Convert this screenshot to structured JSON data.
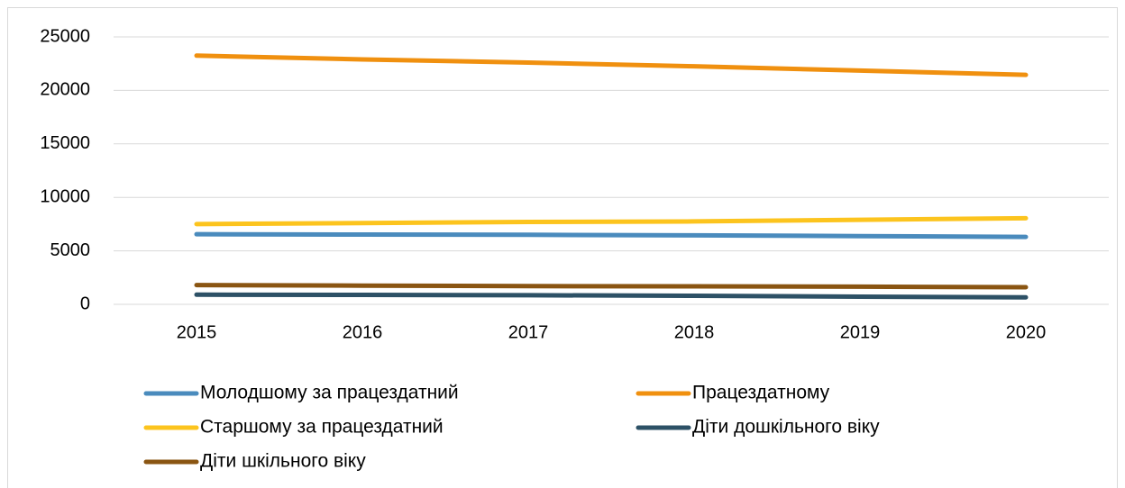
{
  "chart_data": {
    "type": "line",
    "categories": [
      "2015",
      "2016",
      "2017",
      "2018",
      "2019",
      "2020"
    ],
    "series": [
      {
        "name": "Молодшому за працездатний",
        "color": "#4a8bbd",
        "values": [
          6550,
          6520,
          6500,
          6450,
          6380,
          6300
        ]
      },
      {
        "name": "Працездатному",
        "color": "#f0900f",
        "values": [
          23250,
          22900,
          22600,
          22250,
          21850,
          21450
        ]
      },
      {
        "name": "Старшому за працездатний",
        "color": "#fcc41e",
        "values": [
          7500,
          7600,
          7700,
          7750,
          7900,
          8050
        ]
      },
      {
        "name": "Діти дошкільного віку",
        "color": "#2d5166",
        "values": [
          900,
          880,
          850,
          800,
          720,
          650
        ]
      },
      {
        "name": "Діти шкільного віку",
        "color": "#8a5512",
        "values": [
          1800,
          1750,
          1700,
          1680,
          1650,
          1600
        ]
      }
    ],
    "ylim": [
      0,
      25000
    ],
    "yticks": [
      0,
      5000,
      10000,
      15000,
      20000,
      25000
    ],
    "grid": true,
    "legend": "bottom"
  }
}
